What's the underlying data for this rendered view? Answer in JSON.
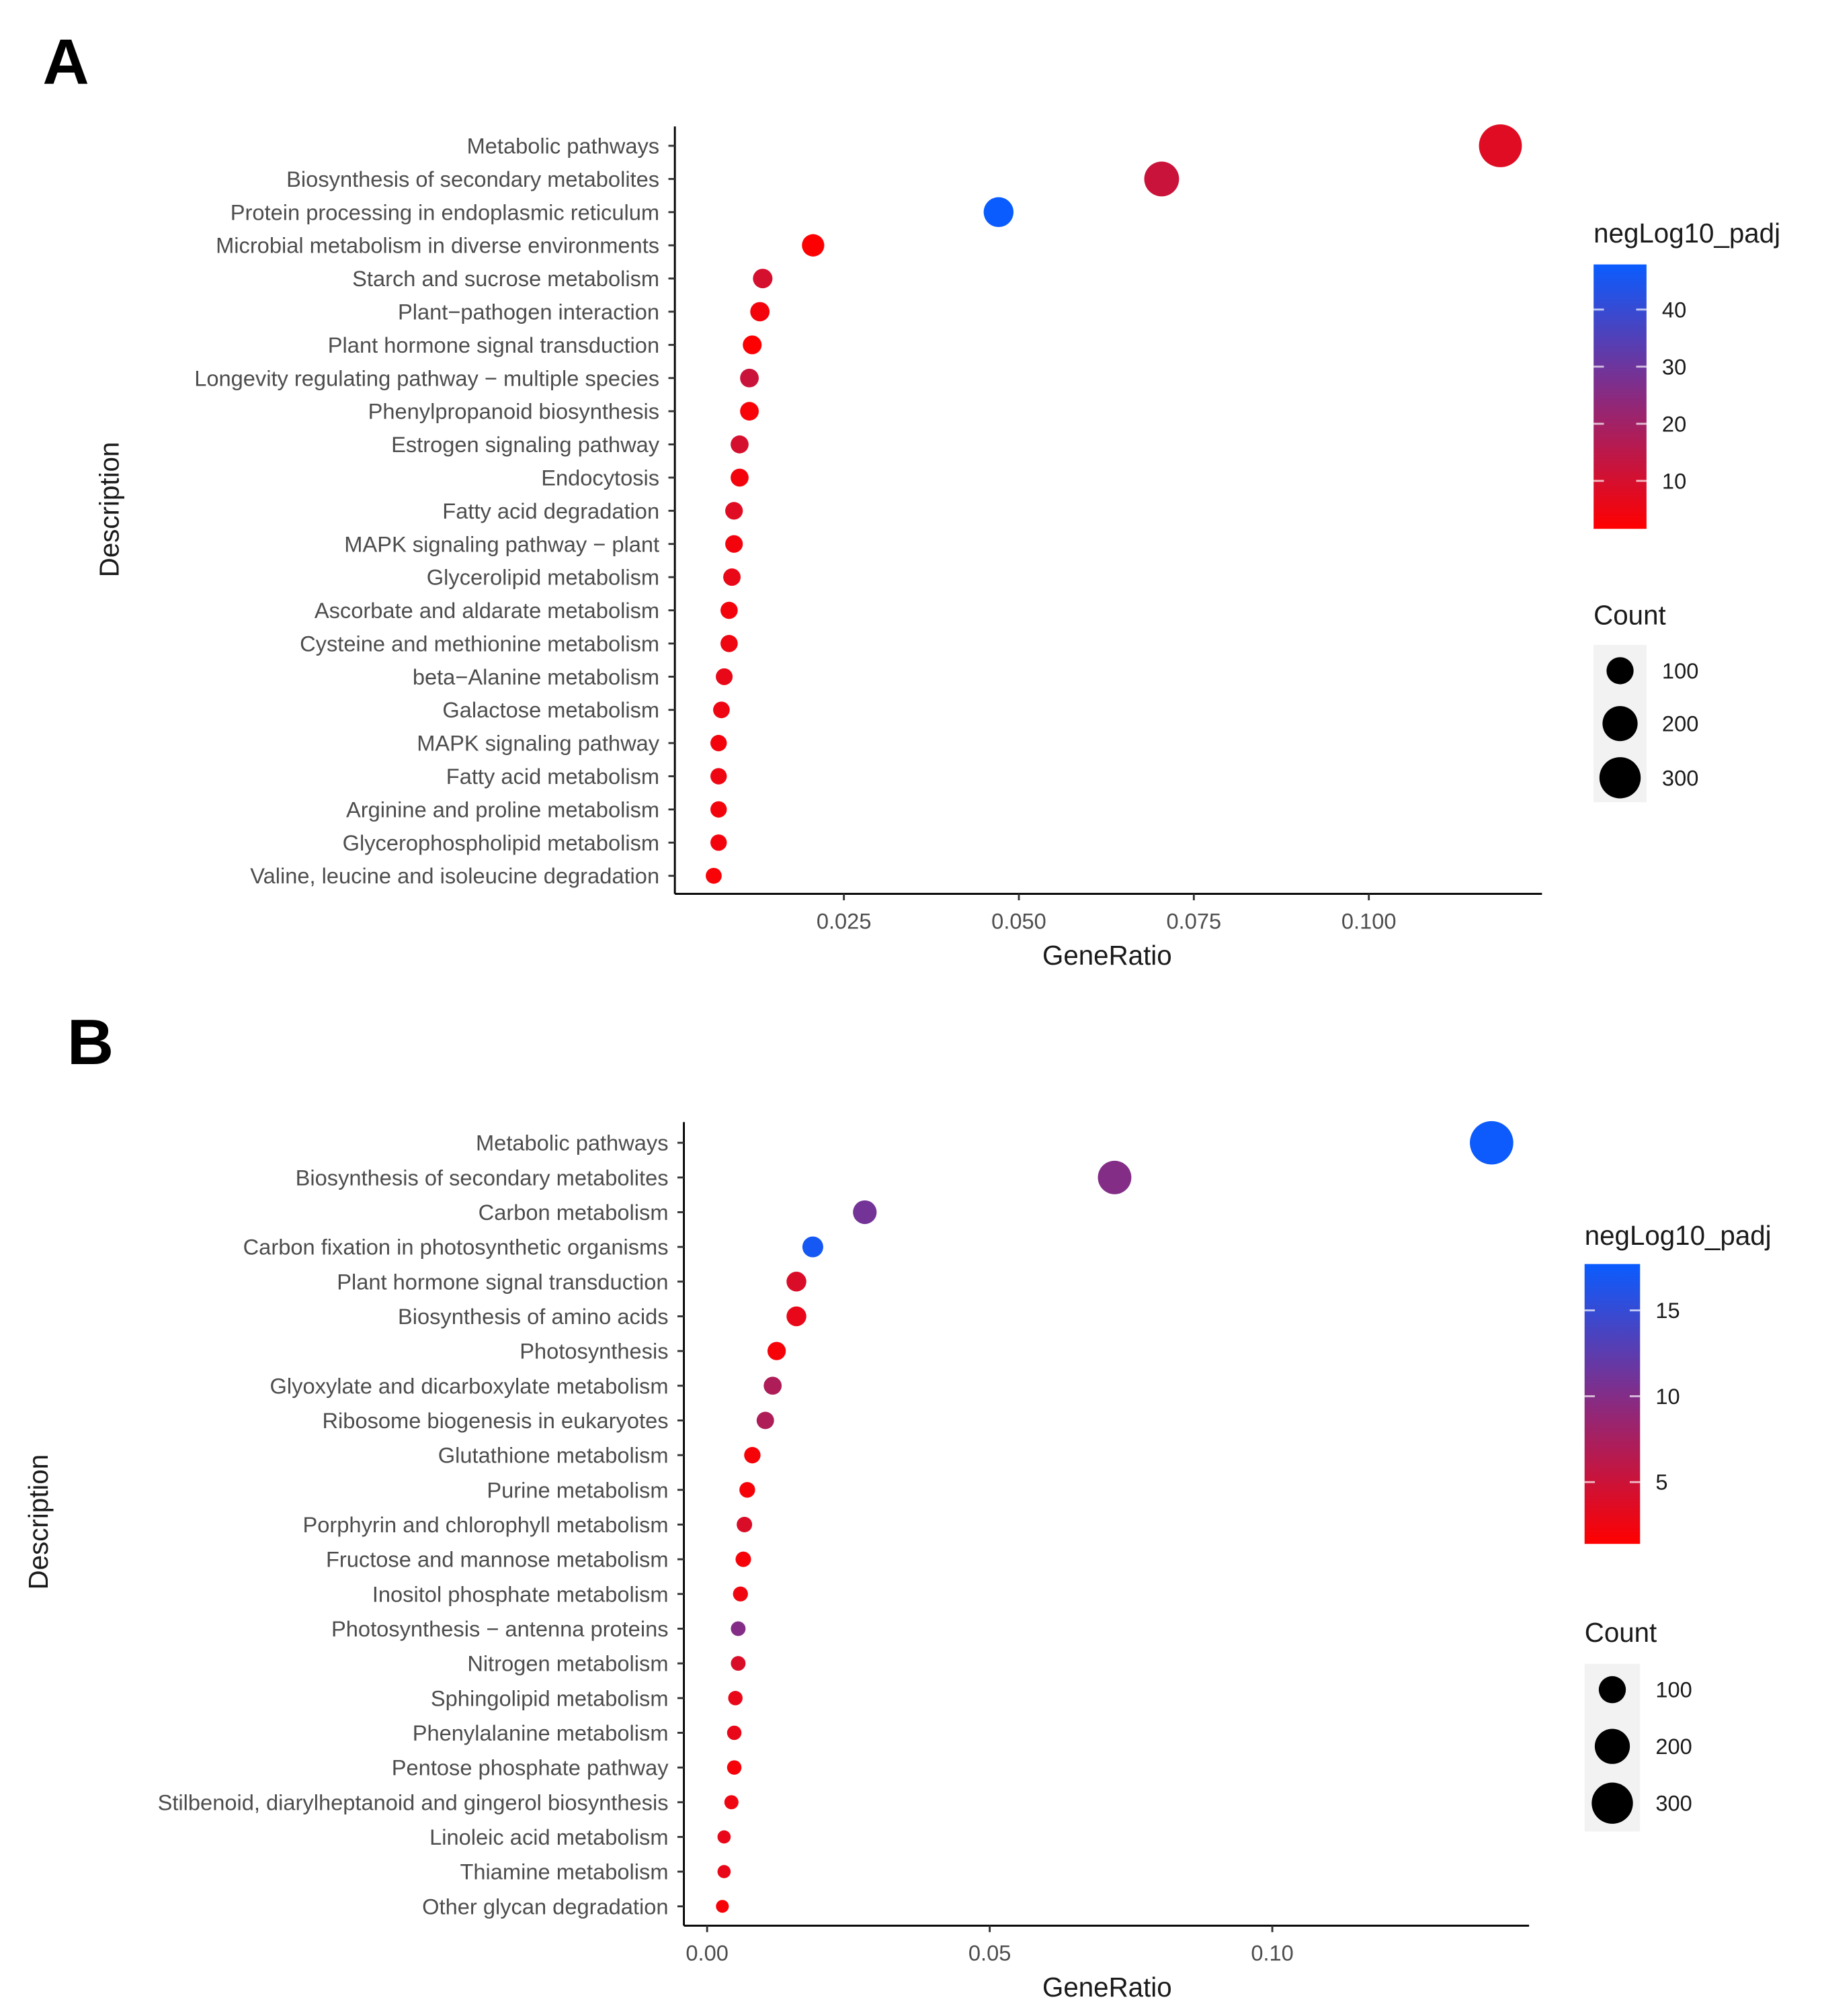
{
  "chart_data": [
    {
      "panel_label": "A",
      "type": "scatter",
      "xlabel": "GeneRatio",
      "ylabel": "Description",
      "xticks": [
        0.025,
        0.05,
        0.075,
        0.1
      ],
      "xtick_labels": [
        "0.025",
        "0.050",
        "0.075",
        "0.100"
      ],
      "xlim": [
        0.0009,
        0.124
      ],
      "grid": false,
      "color_legend": {
        "title": "negLog10_padj",
        "range": [
          1.6,
          47.9
        ],
        "ticks": [
          10,
          20,
          30,
          40
        ],
        "tick_labels": [
          "10",
          "20",
          "30",
          "40"
        ],
        "low_color": "#ff0000",
        "high_color": "#0a5cff"
      },
      "size_legend": {
        "title": "Count",
        "values": [
          100,
          200,
          300
        ],
        "labels": [
          "100",
          "200",
          "300"
        ]
      },
      "legend_position": "right",
      "categories": [
        "Metabolic pathways",
        "Biosynthesis of secondary metabolites",
        "Protein processing in endoplasmic reticulum",
        "Microbial metabolism in diverse environments",
        "Starch and sucrose metabolism",
        "Plant−pathogen interaction",
        "Plant hormone signal transduction",
        "Longevity regulating pathway − multiple species",
        "Phenylpropanoid biosynthesis",
        "Estrogen signaling pathway",
        "Endocytosis",
        "Fatty acid degradation",
        "MAPK signaling pathway − plant",
        "Glycerolipid metabolism",
        "Ascorbate and aldarate metabolism",
        "Cysteine and methionine metabolism",
        "beta−Alanine metabolism",
        "Galactose metabolism",
        "MAPK signaling pathway",
        "Fatty acid metabolism",
        "Arginine and proline metabolism",
        "Glycerophospholipid metabolism",
        "Valine, leucine and isoleucine degradation"
      ],
      "gene_ratio": [
        0.1188,
        0.0704,
        0.0471,
        0.0206,
        0.0134,
        0.013,
        0.0119,
        0.0115,
        0.0115,
        0.0101,
        0.0101,
        0.0093,
        0.0093,
        0.009,
        0.0086,
        0.0086,
        0.0079,
        0.0075,
        0.0071,
        0.0071,
        0.0071,
        0.0071,
        0.0064
      ],
      "count": [
        330,
        196,
        131,
        57,
        37,
        36,
        33,
        32,
        32,
        28,
        28,
        26,
        26,
        25,
        24,
        24,
        22,
        21,
        20,
        20,
        20,
        20,
        18
      ],
      "neglog10_padj": [
        8,
        12,
        48,
        2,
        10,
        4,
        2,
        12,
        3,
        10,
        4,
        8,
        4,
        6,
        4,
        5,
        6,
        5,
        4,
        5,
        4,
        4,
        3
      ]
    },
    {
      "panel_label": "B",
      "type": "scatter",
      "xlabel": "GeneRatio",
      "ylabel": "Description",
      "xticks": [
        0.0,
        0.05,
        0.1
      ],
      "xtick_labels": [
        "0.00",
        "0.05",
        "0.10"
      ],
      "xlim": [
        -0.004,
        0.145
      ],
      "grid": false,
      "color_legend": {
        "title": "negLog10_padj",
        "range": [
          1.4,
          17.7
        ],
        "ticks": [
          5,
          10,
          15
        ],
        "tick_labels": [
          "5",
          "10",
          "15"
        ],
        "low_color": "#ff0000",
        "high_color": "#0a5cff"
      },
      "size_legend": {
        "title": "Count",
        "values": [
          100,
          200,
          300
        ],
        "labels": [
          "100",
          "200",
          "300"
        ]
      },
      "legend_position": "right",
      "categories": [
        "Metabolic pathways",
        "Biosynthesis of secondary metabolites",
        "Carbon metabolism",
        "Carbon fixation in photosynthetic organisms",
        "Plant hormone signal transduction",
        "Biosynthesis of amino acids",
        "Photosynthesis",
        "Glyoxylate and dicarboxylate metabolism",
        "Ribosome biogenesis in eukaryotes",
        "Glutathione metabolism",
        "Purine metabolism",
        "Porphyrin and chlorophyll metabolism",
        "Fructose and mannose metabolism",
        "Inositol phosphate metabolism",
        "Photosynthesis − antenna proteins",
        "Nitrogen metabolism",
        "Sphingolipid metabolism",
        "Phenylalanine metabolism",
        "Pentose phosphate pathway",
        "Stilbenoid, diarylheptanoid and gingerol biosynthesis",
        "Linoleic acid metabolism",
        "Thiamine metabolism",
        "Other glycan degradation"
      ],
      "gene_ratio": [
        0.1388,
        0.0721,
        0.0279,
        0.0187,
        0.0158,
        0.0158,
        0.0123,
        0.0116,
        0.0103,
        0.008,
        0.0071,
        0.0066,
        0.0064,
        0.0059,
        0.0055,
        0.0055,
        0.005,
        0.0048,
        0.0048,
        0.0043,
        0.003,
        0.003,
        0.0027
      ],
      "count": [
        340,
        177,
        68,
        46,
        39,
        39,
        30,
        28,
        25,
        20,
        17,
        16,
        16,
        14,
        13,
        13,
        12,
        12,
        12,
        11,
        8,
        8,
        7
      ],
      "neglog10_padj": [
        17.5,
        10,
        11,
        17,
        4,
        3,
        2,
        7,
        7,
        2,
        2,
        4,
        2,
        2.5,
        10,
        4,
        3,
        3,
        2,
        2.5,
        3,
        3,
        2
      ]
    }
  ]
}
